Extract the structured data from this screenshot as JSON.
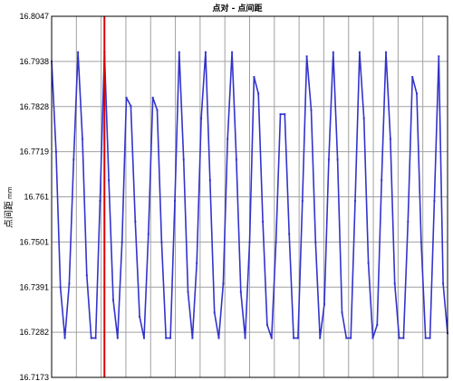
{
  "chart_data": {
    "type": "line",
    "title": "点对 - 点间距",
    "ylabel": "点间距",
    "yunit": "mm",
    "ylim": [
      16.7173,
      16.8047
    ],
    "yticks": [
      "16.8047",
      "16.7938",
      "16.7828",
      "16.7719",
      "16.761",
      "16.7501",
      "16.7391",
      "16.7282",
      "16.7173"
    ],
    "xlim": [
      0,
      90
    ],
    "xgrid_count": 16,
    "grid": true,
    "marker_line_x": 12,
    "series": [
      {
        "color": "#3333cc",
        "x": [
          0,
          1,
          2,
          3,
          4,
          5,
          6,
          7,
          8,
          9,
          10,
          11,
          12,
          13,
          14,
          15,
          16,
          17,
          18,
          19,
          20,
          21,
          22,
          23,
          24,
          25,
          26,
          27,
          28,
          29,
          30,
          31,
          32,
          33,
          34,
          35,
          36,
          37,
          38,
          39,
          40,
          41,
          42,
          43,
          44,
          45,
          46,
          47,
          48,
          49,
          50,
          51,
          52,
          53,
          54,
          55,
          56,
          57,
          58,
          59,
          60,
          61,
          62,
          63,
          64,
          65,
          66,
          67,
          68,
          69,
          70,
          71,
          72,
          73,
          74,
          75,
          76,
          77,
          78,
          79,
          80,
          81,
          82,
          83,
          84,
          85,
          86,
          87,
          88,
          89,
          90
        ],
        "y": [
          16.7938,
          16.7719,
          16.7391,
          16.7268,
          16.74,
          16.77,
          16.796,
          16.775,
          16.742,
          16.7268,
          16.7268,
          16.76,
          16.796,
          16.765,
          16.736,
          16.7268,
          16.75,
          16.785,
          16.783,
          16.755,
          16.732,
          16.7268,
          16.752,
          16.785,
          16.782,
          16.75,
          16.7268,
          16.7268,
          16.76,
          16.796,
          16.77,
          16.738,
          16.7268,
          16.745,
          16.78,
          16.796,
          16.765,
          16.733,
          16.7268,
          16.74,
          16.775,
          16.796,
          16.77,
          16.738,
          16.7268,
          16.75,
          16.79,
          16.786,
          16.755,
          16.73,
          16.7268,
          16.75,
          16.781,
          16.781,
          16.752,
          16.7268,
          16.7268,
          16.76,
          16.795,
          16.782,
          16.75,
          16.7268,
          16.735,
          16.77,
          16.796,
          16.77,
          16.733,
          16.7268,
          16.7268,
          16.76,
          16.796,
          16.78,
          16.745,
          16.7268,
          16.73,
          16.765,
          16.796,
          16.775,
          16.74,
          16.7268,
          16.7268,
          16.755,
          16.79,
          16.786,
          16.75,
          16.7268,
          16.7268,
          16.76,
          16.795,
          16.74,
          16.728
        ]
      }
    ]
  }
}
